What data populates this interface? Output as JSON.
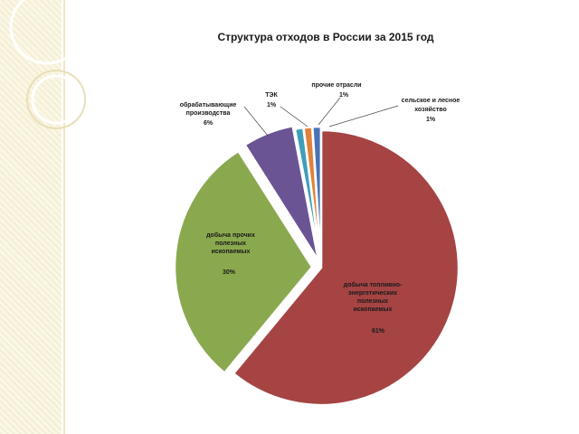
{
  "chart_data": {
    "type": "pie",
    "title": "Структура отходов в России за 2015 год",
    "slices": [
      {
        "label": "добыча топливно-энергетических полезных ископаемых",
        "value": 61,
        "value_label": "61%",
        "color": "#a64343"
      },
      {
        "label": "добыча прочих полезных ископаемых",
        "value": 30,
        "value_label": "30%",
        "color": "#8aa94e"
      },
      {
        "label": "обрабатывающие производства",
        "value": 6,
        "value_label": "6%",
        "color": "#6b5493"
      },
      {
        "label": "ТЭК",
        "value": 1,
        "value_label": "1%",
        "color": "#3f9fb8"
      },
      {
        "label": "прочие отрасли",
        "value": 1,
        "value_label": "1%",
        "color": "#e0823a"
      },
      {
        "label": "сельское и лесное хозяйство",
        "value": 1,
        "value_label": "1%",
        "color": "#4a72b8"
      }
    ],
    "legend": "none"
  }
}
